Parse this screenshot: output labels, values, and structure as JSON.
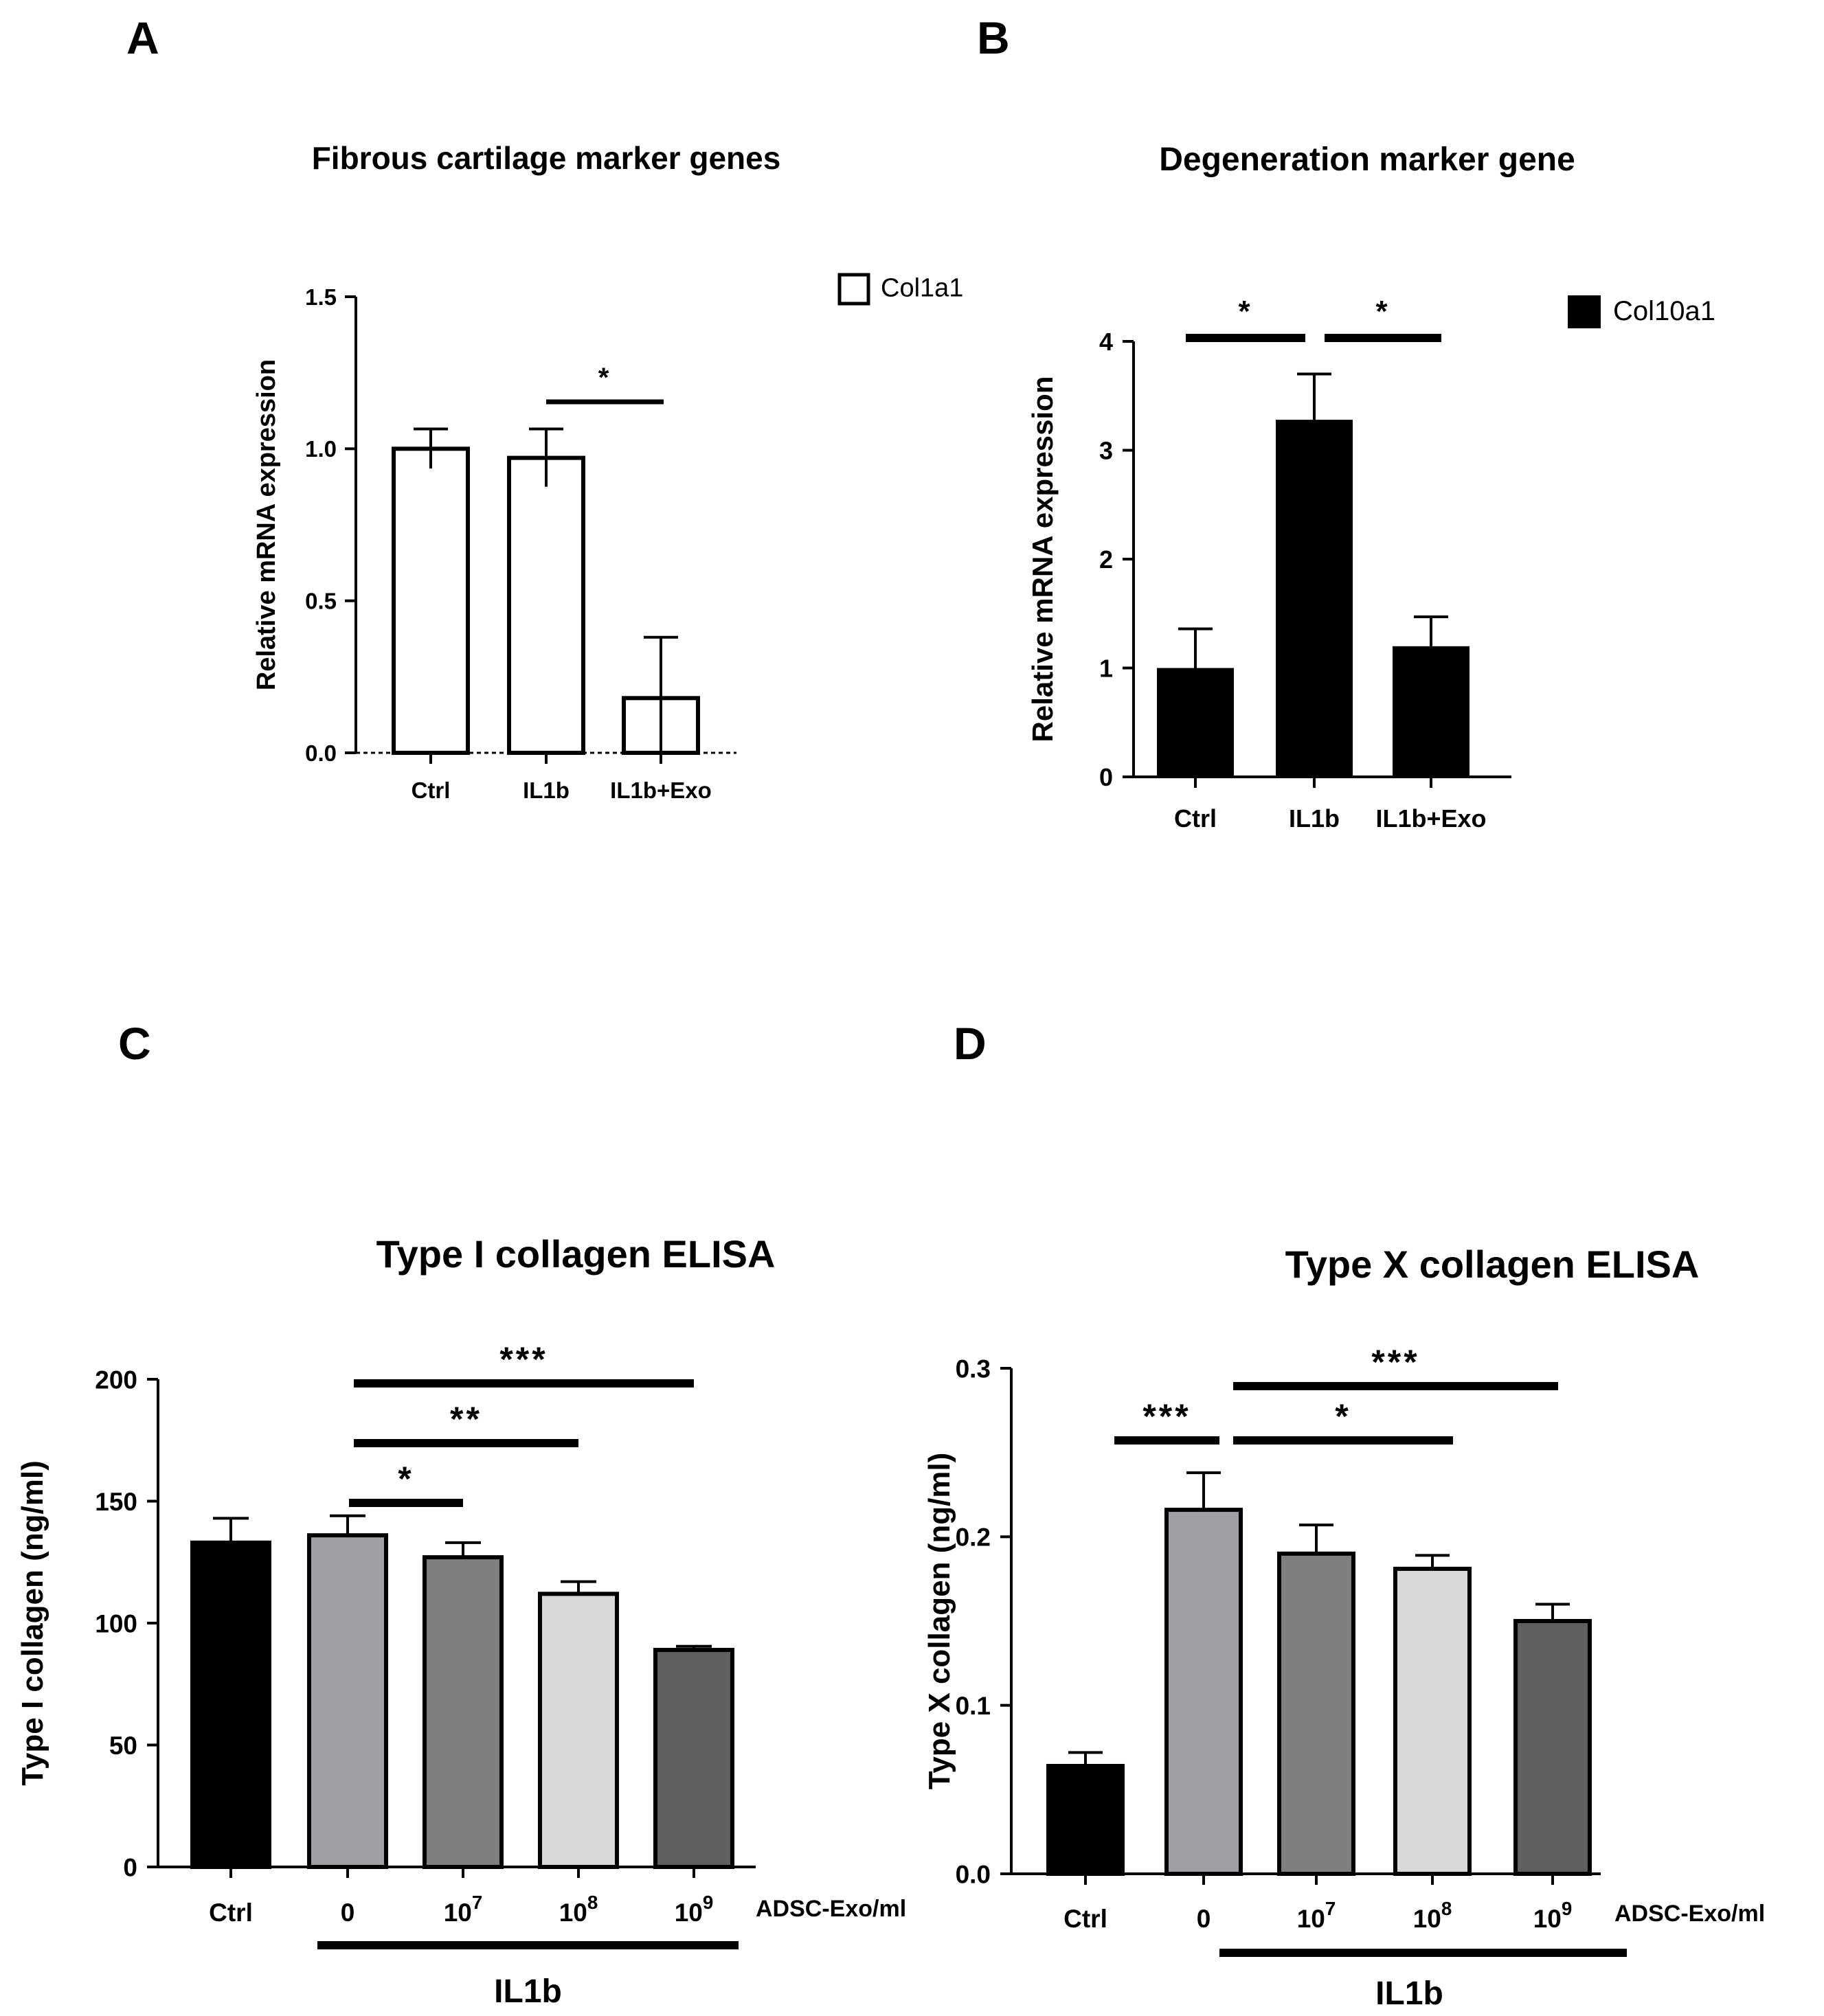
{
  "chart_data": [
    {
      "id": "A",
      "panel": "A",
      "type": "bar",
      "title": "Fibrous cartilage marker genes",
      "ylabel": "Relative mRNA expression",
      "xlabel": "",
      "ylim": [
        0,
        1.5
      ],
      "yticks": [
        0.0,
        0.5,
        1.0,
        1.5
      ],
      "ytick_labels": [
        "0.0",
        "0.5",
        "1.0",
        "1.5"
      ],
      "categories": [
        "Ctrl",
        "IL1b",
        "IL1b+Exo"
      ],
      "series": [
        {
          "name": "Col1a1",
          "values": [
            1.0,
            0.97,
            0.18
          ],
          "errors": [
            0.065,
            0.095,
            0.2
          ],
          "color": "#ffffff"
        }
      ],
      "legend": {
        "position": "top-right",
        "entries": [
          "Col1a1"
        ]
      },
      "baseline_dotted": true,
      "significance": [
        {
          "from": 1,
          "to": 2,
          "level": 0,
          "label": "*"
        }
      ]
    },
    {
      "id": "B",
      "panel": "B",
      "type": "bar",
      "title": "Degeneration marker gene",
      "ylabel": "Relative mRNA expression",
      "xlabel": "",
      "ylim": [
        0,
        4
      ],
      "yticks": [
        0,
        1,
        2,
        3,
        4
      ],
      "ytick_labels": [
        "0",
        "1",
        "2",
        "3",
        "4"
      ],
      "categories": [
        "Ctrl",
        "IL1b",
        "IL1b+Exo"
      ],
      "series": [
        {
          "name": "Col10a1",
          "values": [
            1.0,
            3.28,
            1.2
          ],
          "errors": [
            0.36,
            0.42,
            0.27
          ],
          "color": "#000000"
        }
      ],
      "legend": {
        "position": "top-right",
        "entries": [
          "Col10a1"
        ]
      },
      "significance": [
        {
          "from": 0,
          "to": 1,
          "level": 0,
          "label": "*"
        },
        {
          "from": 1,
          "to": 2,
          "level": 0,
          "label": "*"
        }
      ]
    },
    {
      "id": "C",
      "panel": "C",
      "type": "bar",
      "title": "Type I collagen ELISA",
      "ylabel": "Type I collagen (ng/ml)",
      "xlabel": "ADSC-Exo/ml",
      "ylim": [
        0,
        200
      ],
      "yticks": [
        0,
        50,
        100,
        150,
        200
      ],
      "ytick_labels": [
        "0",
        "50",
        "100",
        "150",
        "200"
      ],
      "categories": [
        {
          "base": "Ctrl",
          "sup": ""
        },
        {
          "base": "0",
          "sup": ""
        },
        {
          "base": "10",
          "sup": "7"
        },
        {
          "base": "10",
          "sup": "8"
        },
        {
          "base": "10",
          "sup": "9"
        }
      ],
      "values": [
        133,
        136,
        127,
        112,
        89
      ],
      "errors": [
        10,
        8,
        6,
        5,
        1.5
      ],
      "colors": [
        "#000000",
        "#a0a0a4",
        "#7f7f7f",
        "#d8d8d8",
        "#5f5f5f"
      ],
      "group_label": "IL1b",
      "significance": [
        {
          "from": 1,
          "to": 2,
          "level": 0,
          "label": "*"
        },
        {
          "from": 1,
          "to": 3,
          "level": 1,
          "label": "**"
        },
        {
          "from": 1,
          "to": 4,
          "level": 2,
          "label": "***"
        }
      ]
    },
    {
      "id": "D",
      "panel": "D",
      "type": "bar",
      "title": "Type X collagen ELISA",
      "ylabel": "Type X collagen (ng/ml)",
      "xlabel": "ADSC-Exo/ml",
      "ylim": [
        0,
        0.3
      ],
      "yticks": [
        0.0,
        0.1,
        0.2,
        0.3
      ],
      "ytick_labels": [
        "0.0",
        "0.1",
        "0.2",
        "0.3"
      ],
      "categories": [
        {
          "base": "Ctrl",
          "sup": ""
        },
        {
          "base": "0",
          "sup": ""
        },
        {
          "base": "10",
          "sup": "7"
        },
        {
          "base": "10",
          "sup": "8"
        },
        {
          "base": "10",
          "sup": "9"
        }
      ],
      "values": [
        0.064,
        0.216,
        0.19,
        0.181,
        0.15
      ],
      "errors": [
        0.008,
        0.022,
        0.017,
        0.008,
        0.01
      ],
      "colors": [
        "#000000",
        "#a0a0a4",
        "#7f7f7f",
        "#d8d8d8",
        "#5f5f5f"
      ],
      "group_label": "IL1b",
      "significance": [
        {
          "from": 0,
          "to": 1,
          "level": 0,
          "label": "***"
        },
        {
          "from": 1,
          "to": 3,
          "level": 0,
          "label": "*"
        },
        {
          "from": 1,
          "to": 4,
          "level": 1,
          "label": "***"
        }
      ]
    }
  ]
}
